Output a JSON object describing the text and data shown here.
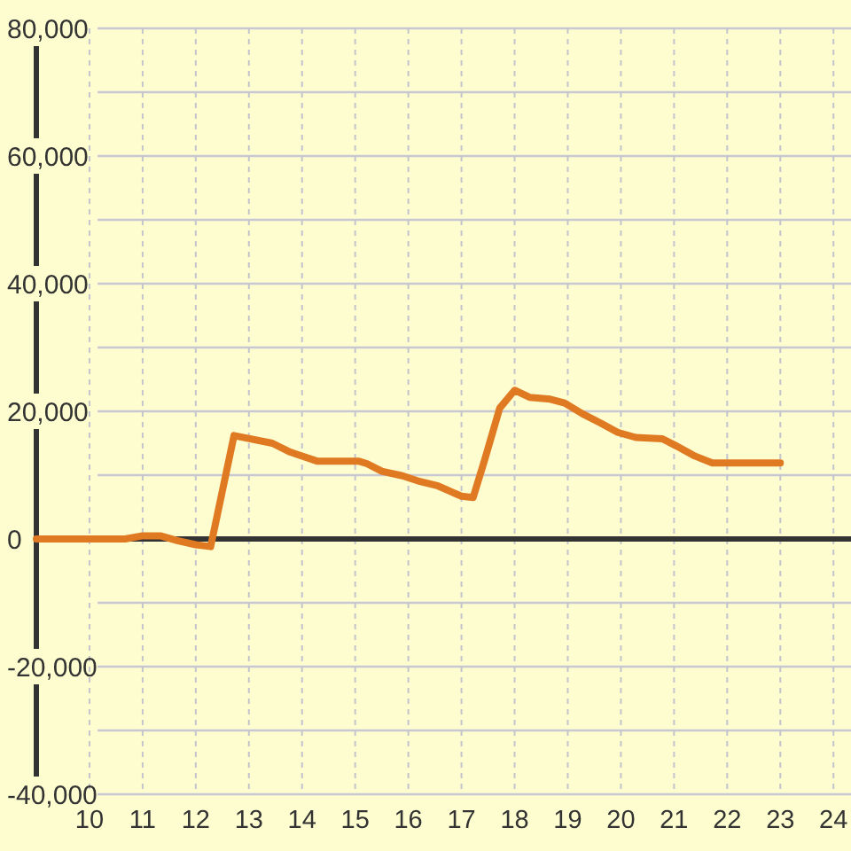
{
  "chart_data": {
    "type": "line",
    "x": [
      9,
      10,
      10.67,
      11,
      11.33,
      11.67,
      12,
      12.28,
      12.72,
      13.44,
      13.78,
      14.28,
      15.06,
      15.22,
      15.5,
      15.89,
      16.22,
      16.56,
      17,
      17.22,
      17.44,
      17.72,
      18,
      18.28,
      18.67,
      18.94,
      19.28,
      19.61,
      19.94,
      20.28,
      20.78,
      21.06,
      21.39,
      21.72,
      23
    ],
    "series": [
      {
        "color": "#e07a22",
        "values": [
          0,
          0,
          0,
          500,
          500,
          -300,
          -900,
          -1200,
          16200,
          15000,
          13600,
          12200,
          12200,
          11800,
          10600,
          9900,
          9000,
          8300,
          6700,
          6500,
          12500,
          20500,
          23300,
          22200,
          21900,
          21300,
          19600,
          18200,
          16700,
          15900,
          15700,
          14500,
          13000,
          11900,
          11900
        ]
      }
    ],
    "xlim": [
      9,
      24.33
    ],
    "xticks": [
      10,
      11,
      12,
      13,
      14,
      15,
      16,
      17,
      18,
      19,
      20,
      21,
      22,
      23,
      24
    ],
    "ylim": [
      -40000,
      80000
    ],
    "yticks": [
      {
        "value": -40000,
        "label": "-40,000"
      },
      {
        "value": -30000,
        "label": null
      },
      {
        "value": -20000,
        "label": "-20,000"
      },
      {
        "value": -10000,
        "label": null
      },
      0,
      {
        "value": 10000,
        "label": null
      },
      {
        "value": 20000,
        "label": "20,000"
      },
      {
        "value": 30000,
        "label": null
      },
      {
        "value": 40000,
        "label": "40,000"
      },
      {
        "value": 50000,
        "label": null
      },
      {
        "value": 60000,
        "label": "60,000"
      },
      {
        "value": 70000,
        "label": null
      },
      {
        "value": 80000,
        "label": "80,000"
      }
    ],
    "grid": true,
    "ref_lines": [
      {
        "axis": "y",
        "value": 0,
        "color": "#333333"
      }
    ]
  }
}
